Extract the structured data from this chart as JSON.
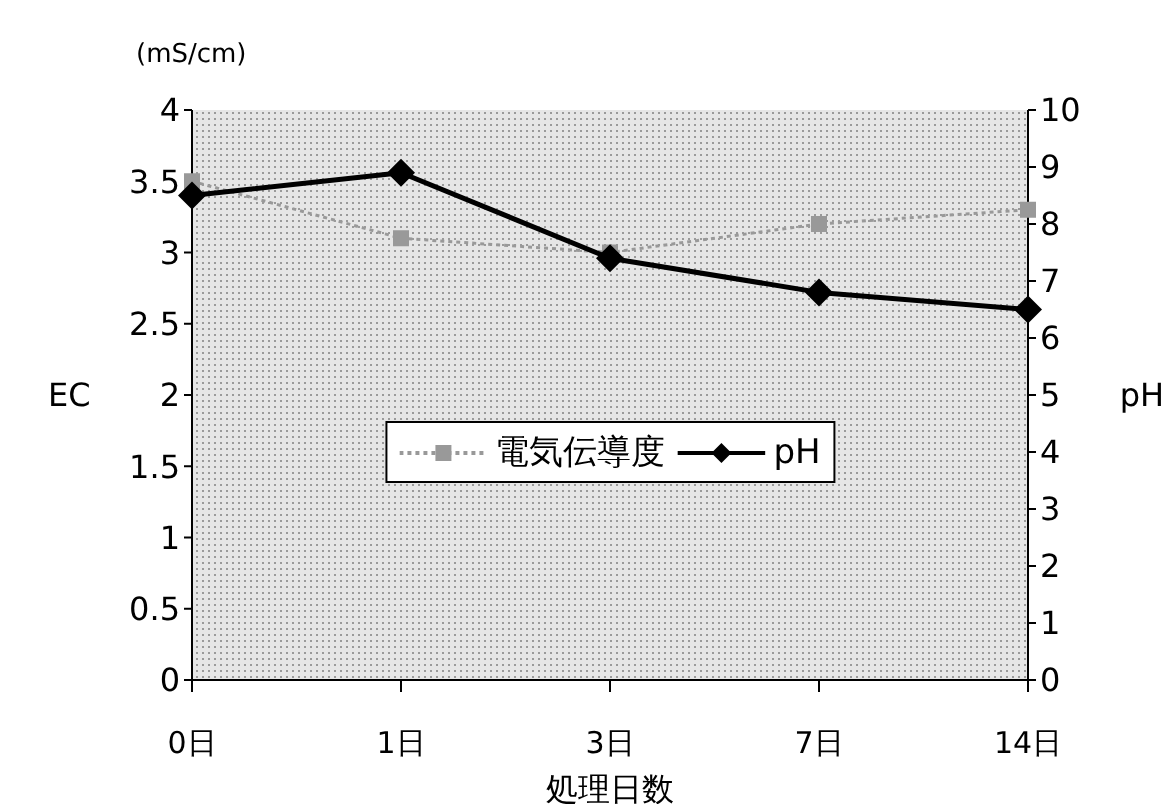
{
  "chart_data": {
    "type": "line",
    "xlabel": "処理日数",
    "ylabel": "EC",
    "y2label": "pH",
    "annotations": [
      "(mS/cm)"
    ],
    "categories": [
      "0日",
      "1日",
      "3日",
      "7日",
      "14日"
    ],
    "series": [
      {
        "name": "電気伝導度",
        "color": "#999999",
        "values": [
          3.5,
          3.1,
          3.0,
          3.2,
          3.3
        ],
        "marker": "square",
        "line_style": "dotted"
      },
      {
        "name": "pH",
        "color": "#000000",
        "values": [
          8.5,
          8.9,
          7.4,
          6.8,
          6.5
        ],
        "axis": "y2",
        "marker": "diamond",
        "line_style": "solid"
      }
    ],
    "ylim": [
      0,
      4
    ],
    "yticks": [
      0,
      0.5,
      1,
      1.5,
      2,
      2.5,
      3,
      3.5,
      4
    ],
    "y2lim": [
      0,
      10
    ],
    "y2ticks": [
      0,
      1,
      2,
      3,
      4,
      5,
      6,
      7,
      8,
      9,
      10
    ],
    "legend": "center"
  }
}
